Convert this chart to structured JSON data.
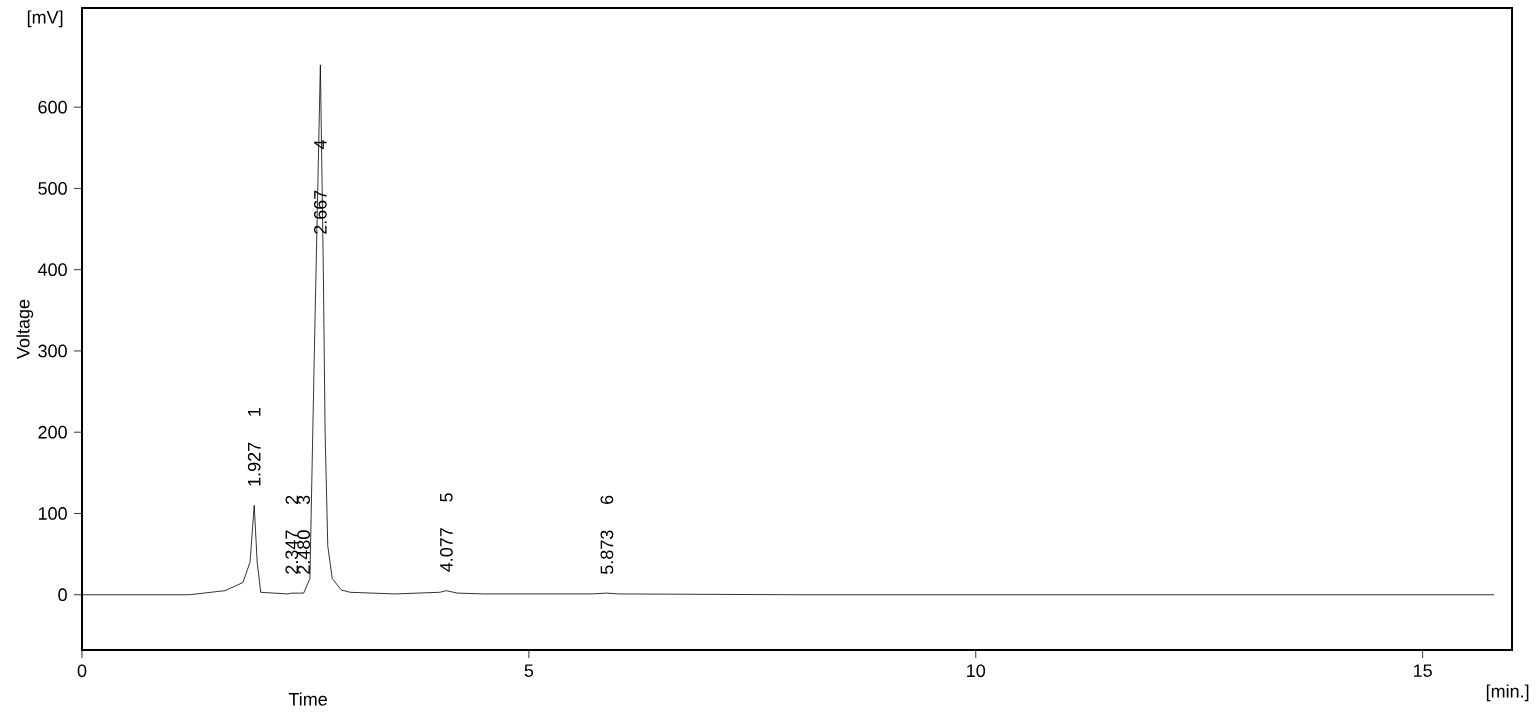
{
  "chart_data": {
    "type": "line",
    "xlabel": "Time",
    "ylabel": "Voltage",
    "x": [
      0,
      1.2,
      1.6,
      1.8,
      1.88,
      1.927,
      1.96,
      2.0,
      2.3,
      2.347,
      2.48,
      2.55,
      2.6,
      2.667,
      2.7,
      2.72,
      2.75,
      2.8,
      2.9,
      3.0,
      3.5,
      4.0,
      4.077,
      4.2,
      4.5,
      5.7,
      5.873,
      6.0,
      8.0,
      12.0,
      15.8
    ],
    "series": [
      {
        "color": "#000000",
        "values": [
          0,
          0,
          5,
          15,
          40,
          110,
          40,
          3,
          1,
          2,
          2,
          20,
          300,
          652,
          400,
          200,
          60,
          20,
          6,
          3,
          1,
          3,
          5,
          2,
          1,
          1,
          2,
          1,
          0,
          0,
          0
        ]
      }
    ],
    "xlim": [
      0,
      16
    ],
    "ylim": [
      -68,
      722
    ],
    "xticks": [
      0,
      5,
      10,
      15
    ],
    "yticks": [
      0,
      100,
      200,
      300,
      400,
      500,
      600
    ],
    "grid": false,
    "marker": "none",
    "line_style": "solid",
    "annotations": [
      "[mV]",
      "[min.]",
      {
        "text": "1.927",
        "x": 1.927,
        "y": 110
      },
      "1",
      {
        "text": "2.347",
        "x": 2.347,
        "y": 2
      },
      "2",
      {
        "text": "2.480",
        "x": 2.48,
        "y": 2
      },
      "3",
      {
        "text": "2.667",
        "x": 2.667,
        "y": 440
      },
      {
        "text": "4",
        "x": 2.667,
        "y": 545
      },
      {
        "text": "4.077",
        "x": 4.077,
        "y": 5
      },
      "5",
      {
        "text": "5.873",
        "x": 5.873,
        "y": 2
      },
      "6"
    ]
  }
}
